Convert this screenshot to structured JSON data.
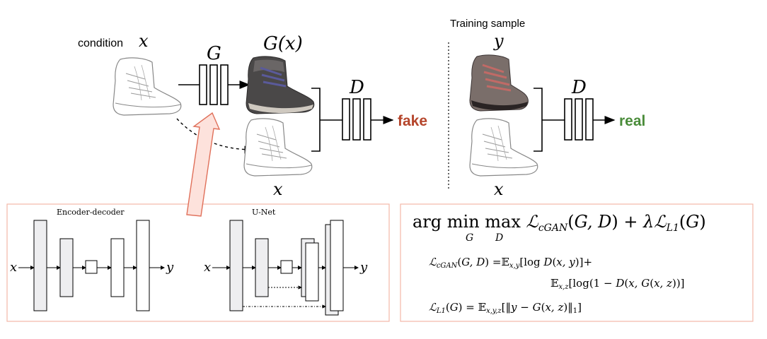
{
  "labels": {
    "condition": "condition",
    "x_symbol": "x",
    "y_symbol": "y",
    "G": "G",
    "G_of_x": "G(x)",
    "D": "D",
    "fake": "fake",
    "real": "real",
    "training_sample": "Training sample",
    "encoder_decoder": "Encoder-decoder",
    "unet": "U-Net",
    "arrow_x": "x",
    "arrow_y": "y"
  },
  "equations": {
    "objective": "arg min max ℒcGAN(G, D) + λℒL1(G)",
    "objective_main": "arg min max ",
    "objective_rest": "ℒ",
    "objective_sub_G": "G",
    "objective_sub_D": "D",
    "cgan_line1": "ℒcGAN(G, D) =𝔼x,y[log D(x, y)]+",
    "cgan_line2": "𝔼x,z[log(1 − D(x, G(x, z))]",
    "l1_line": "ℒL1(G) = 𝔼x,y,z[‖y − G(x, z)‖1]"
  },
  "colors": {
    "fake": "#b5452b",
    "real": "#4a8c3a",
    "box_border": "#f2b8a8",
    "unet_arrow_fill": "#fde2dc",
    "unet_arrow_stroke": "#e0705a"
  }
}
